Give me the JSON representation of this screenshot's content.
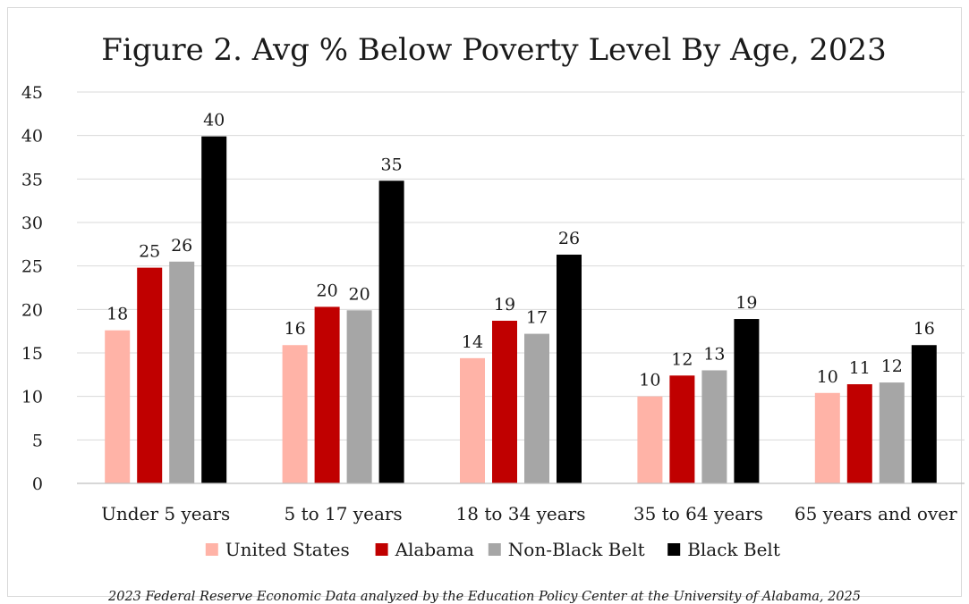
{
  "chart_data": {
    "type": "bar",
    "title": "Figure 2. Avg % Below Poverty Level By Age, 2023",
    "xlabel": "",
    "ylabel": "",
    "ylim": [
      0,
      45
    ],
    "yticks": [
      0,
      5,
      10,
      15,
      20,
      25,
      30,
      35,
      40,
      45
    ],
    "grid": true,
    "legend_position": "bottom",
    "categories": [
      "Under 5 years",
      "5 to 17 years",
      "18 to 34 years",
      "35 to 64 years",
      "65 years and over"
    ],
    "series": [
      {
        "name": "United States",
        "color": "#ffb3a7",
        "values": [
          17.6,
          15.9,
          14.4,
          10.0,
          10.4
        ],
        "labels": [
          "18",
          "16",
          "14",
          "10",
          "10"
        ]
      },
      {
        "name": "Alabama",
        "color": "#c00000",
        "values": [
          24.8,
          20.3,
          18.7,
          12.4,
          11.4
        ],
        "labels": [
          "25",
          "20",
          "19",
          "12",
          "11"
        ]
      },
      {
        "name": "Non-Black Belt",
        "color": "#a6a6a6",
        "values": [
          25.5,
          19.9,
          17.2,
          13.0,
          11.6
        ],
        "labels": [
          "26",
          "20",
          "17",
          "13",
          "12"
        ]
      },
      {
        "name": "Black Belt",
        "color": "#000000",
        "values": [
          39.9,
          34.8,
          26.3,
          18.9,
          15.9
        ],
        "labels": [
          "40",
          "35",
          "26",
          "19",
          "16"
        ]
      }
    ]
  },
  "source_note": "2023 Federal Reserve Economic Data analyzed by the Education Policy Center at the University of Alabama, 2025"
}
